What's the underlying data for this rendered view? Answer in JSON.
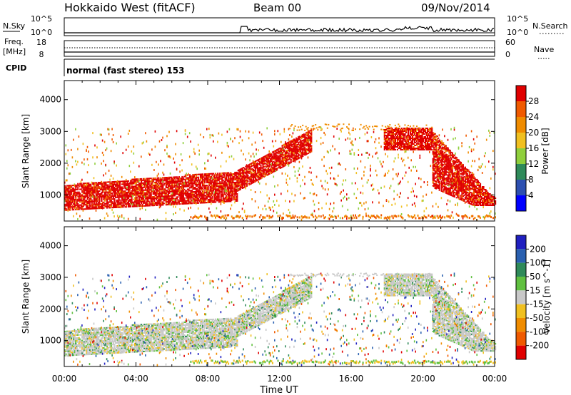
{
  "header": {
    "title": "Hokkaido West (fitACF)",
    "beam": "Beam 00",
    "date": "09/Nov/2014"
  },
  "strips": {
    "nsky_label": "N.Sky",
    "nsearch_label": "N.Search",
    "noise_ticks_left": [
      "10^5",
      "10^0"
    ],
    "noise_ticks_right": [
      "10^5",
      "10^0"
    ],
    "freq_label_line1": "Freq.",
    "freq_label_line2": "[MHz]",
    "freq_ticks": [
      "18",
      "8"
    ],
    "nave_label": "Nave",
    "nave_ticks": [
      "60",
      "0"
    ],
    "cpid_label": "CPID",
    "cpid_text": "normal (fast stereo) 153"
  },
  "chart_data": [
    {
      "type": "heatmap",
      "name": "power-panel",
      "xlabel": "Time UT",
      "ylabel": "Slant Range [km]",
      "xlim_hours": [
        0,
        24
      ],
      "ylim": [
        180,
        4600
      ],
      "y_ticks": [
        1000,
        2000,
        3000,
        4000
      ],
      "colorbar": {
        "label": "Power [dB]",
        "ticks": [
          "4",
          "8",
          "12",
          "16",
          "20",
          "24",
          "28"
        ],
        "colors": [
          "#0000ff",
          "#2d4fb0",
          "#2f8a5a",
          "#8fcf3c",
          "#f0c020",
          "#f08c00",
          "#f05a00",
          "#e00000"
        ]
      },
      "description_regions": [
        {
          "t": [
            0,
            9.6
          ],
          "range": [
            500,
            1700
          ],
          "level": "28+"
        },
        {
          "t": [
            9.6,
            14
          ],
          "range": [
            1300,
            3100
          ],
          "level": "28+"
        },
        {
          "t": [
            17.8,
            21.5
          ],
          "range": [
            2500,
            3100
          ],
          "level": "28+"
        },
        {
          "t": [
            19.5,
            24
          ],
          "range": [
            700,
            3000
          ],
          "level": "28+"
        }
      ]
    },
    {
      "type": "heatmap",
      "name": "velocity-panel",
      "xlabel": "Time UT",
      "ylabel": "Slant Range [km]",
      "xlim_hours": [
        0,
        24
      ],
      "ylim": [
        180,
        4600
      ],
      "y_ticks": [
        1000,
        2000,
        3000,
        4000
      ],
      "colorbar": {
        "label": "Velocity [m s^-1]",
        "ticks": [
          "200",
          "100",
          "50",
          "15",
          "-15",
          "-50",
          "-100",
          "-200"
        ],
        "colors": [
          "#2020c0",
          "#2a60b0",
          "#2f8a5a",
          "#60c040",
          "#c8c8c8",
          "#f0c020",
          "#f08c00",
          "#f05a00",
          "#e00000"
        ]
      }
    }
  ],
  "x_ticks": [
    "00:00",
    "04:00",
    "08:00",
    "12:00",
    "16:00",
    "20:00",
    "00:00"
  ],
  "xlabel": "Time UT"
}
